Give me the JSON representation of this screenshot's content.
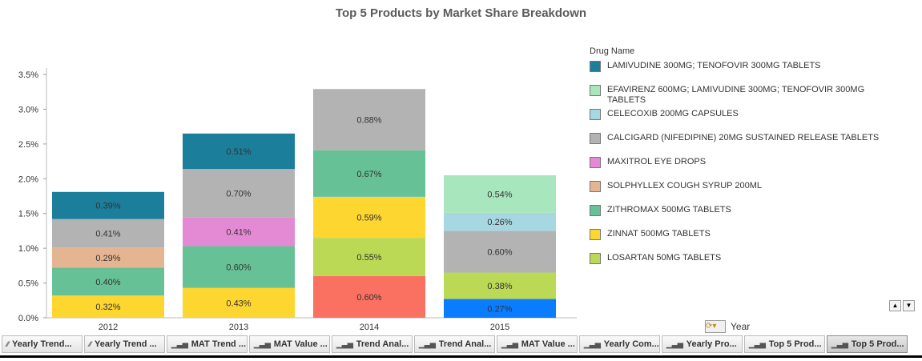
{
  "chart_data": {
    "type": "bar",
    "stacked": true,
    "title": "Top 5 Products by Market Share Breakdown",
    "categories": [
      "2012",
      "2013",
      "2014",
      "2015"
    ],
    "ylim": [
      0,
      3.5
    ],
    "yticks": [
      "0.0%",
      "0.5%",
      "1.0%",
      "1.5%",
      "2.0%",
      "2.5%",
      "3.0%",
      "3.5%"
    ],
    "legend_title": "Drug Name",
    "legend_position": "right",
    "series": [
      {
        "name": "",
        "color": "#0a7cff",
        "values": [
          null,
          null,
          null,
          0.27
        ]
      },
      {
        "name": "",
        "color": "#fa7161",
        "values": [
          null,
          null,
          0.6,
          null
        ]
      },
      {
        "name": "LOSARTAN 50MG TABLETS",
        "color": "#bbd954",
        "values": [
          null,
          null,
          0.55,
          0.38
        ]
      },
      {
        "name": "ZINNAT 500MG TABLETS",
        "color": "#fed630",
        "values": [
          0.32,
          0.43,
          0.59,
          null
        ]
      },
      {
        "name": "ZITHROMAX 500MG TABLETS",
        "color": "#66c196",
        "values": [
          0.4,
          0.6,
          0.67,
          null
        ]
      },
      {
        "name": "SOLPHYLLEX COUGH SYRUP 200ML",
        "color": "#e5b592",
        "values": [
          0.29,
          null,
          null,
          null
        ]
      },
      {
        "name": "MAXITROL EYE DROPS",
        "color": "#e48ad4",
        "values": [
          null,
          0.41,
          null,
          null
        ]
      },
      {
        "name": "CALCIGARD (NIFEDIPINE) 20MG SUSTAINED RELEASE TABLETS",
        "color": "#b3b3b3",
        "values": [
          0.41,
          0.7,
          0.88,
          0.6
        ]
      },
      {
        "name": "CELECOXIB 200MG CAPSULES",
        "color": "#a7d8e2",
        "values": [
          null,
          null,
          null,
          0.26
        ]
      },
      {
        "name": "EFAVIRENZ 600MG; LAMIVUDINE 300MG; TENOFOVIR 300MG TABLETS",
        "color": "#a8e6bd",
        "values": [
          null,
          null,
          null,
          0.54
        ]
      },
      {
        "name": "LAMIVUDINE 300MG; TENOFOVIR 300MG TABLETS",
        "color": "#1b7e9b",
        "values": [
          0.39,
          0.51,
          null,
          null
        ]
      }
    ],
    "legend_order": [
      10,
      9,
      8,
      7,
      6,
      5,
      4,
      3,
      2
    ]
  },
  "controls": {
    "year_label": "Year",
    "scroll_up": "▲",
    "scroll_down": "▼",
    "dropdown_icon": "cycle-icon"
  },
  "tabs": [
    {
      "label": "Yearly Trend...",
      "icon": "line-chart-icon"
    },
    {
      "label": "Yearly Trend ...",
      "icon": "line-chart-icon"
    },
    {
      "label": "MAT Trend ...",
      "icon": "bar-chart-icon"
    },
    {
      "label": "MAT Value ...",
      "icon": "bar-chart-icon"
    },
    {
      "label": "Trend Anal...",
      "icon": "bar-chart-icon"
    },
    {
      "label": "Trend Anal...",
      "icon": "bar-chart-icon"
    },
    {
      "label": "MAT Value ...",
      "icon": "bar-chart-icon"
    },
    {
      "label": "Yearly Com...",
      "icon": "bar-chart-icon"
    },
    {
      "label": "Yearly Pro...",
      "icon": "bar-chart-icon"
    },
    {
      "label": "Top 5 Prod...",
      "icon": "bar-chart-icon"
    },
    {
      "label": "Top 5 Prod...",
      "icon": "bar-chart-icon",
      "active": true
    }
  ]
}
